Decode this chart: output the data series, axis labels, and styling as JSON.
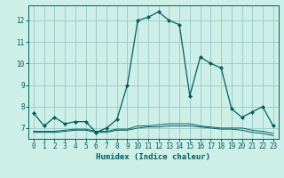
{
  "xlabel": "Humidex (Indice chaleur)",
  "xlim": [
    -0.5,
    23.5
  ],
  "ylim": [
    6.5,
    12.7
  ],
  "yticks": [
    7,
    8,
    9,
    10,
    11,
    12
  ],
  "xticks": [
    0,
    1,
    2,
    3,
    4,
    5,
    6,
    7,
    8,
    9,
    10,
    11,
    12,
    13,
    14,
    15,
    16,
    17,
    18,
    19,
    20,
    21,
    22,
    23
  ],
  "bg_color": "#ceeee8",
  "grid_color": "#9ecece",
  "line_color": "#005f5f",
  "series1": {
    "x": [
      0,
      1,
      2,
      3,
      4,
      5,
      6,
      7,
      8,
      9,
      10,
      11,
      12,
      13,
      14,
      15,
      16,
      17,
      18,
      19,
      20,
      21,
      22,
      23
    ],
    "y": [
      7.7,
      7.1,
      7.5,
      7.2,
      7.3,
      7.3,
      6.8,
      7.0,
      7.4,
      9.0,
      12.0,
      12.15,
      12.4,
      12.0,
      11.8,
      8.5,
      10.3,
      10.0,
      9.8,
      7.9,
      7.5,
      7.75,
      8.0,
      7.1
    ]
  },
  "series2": {
    "x": [
      0,
      1,
      2,
      3,
      4,
      5,
      6,
      7,
      8,
      9,
      10,
      11,
      12,
      13,
      14,
      15,
      16,
      17,
      18,
      19,
      20,
      21,
      22,
      23
    ],
    "y": [
      6.85,
      6.85,
      6.85,
      6.9,
      6.95,
      6.95,
      6.85,
      6.85,
      6.95,
      6.95,
      7.1,
      7.1,
      7.15,
      7.2,
      7.2,
      7.2,
      7.1,
      7.05,
      7.0,
      7.0,
      7.0,
      6.9,
      6.85,
      6.75
    ]
  },
  "series3": {
    "x": [
      0,
      1,
      2,
      3,
      4,
      5,
      6,
      7,
      8,
      9,
      10,
      11,
      12,
      13,
      14,
      15,
      16,
      17,
      18,
      19,
      20,
      21,
      22,
      23
    ],
    "y": [
      6.8,
      6.8,
      6.8,
      6.85,
      6.9,
      6.9,
      6.8,
      6.8,
      6.9,
      6.9,
      7.0,
      7.05,
      7.05,
      7.1,
      7.1,
      7.1,
      7.05,
      7.0,
      6.95,
      6.95,
      6.9,
      6.8,
      6.75,
      6.65
    ]
  }
}
